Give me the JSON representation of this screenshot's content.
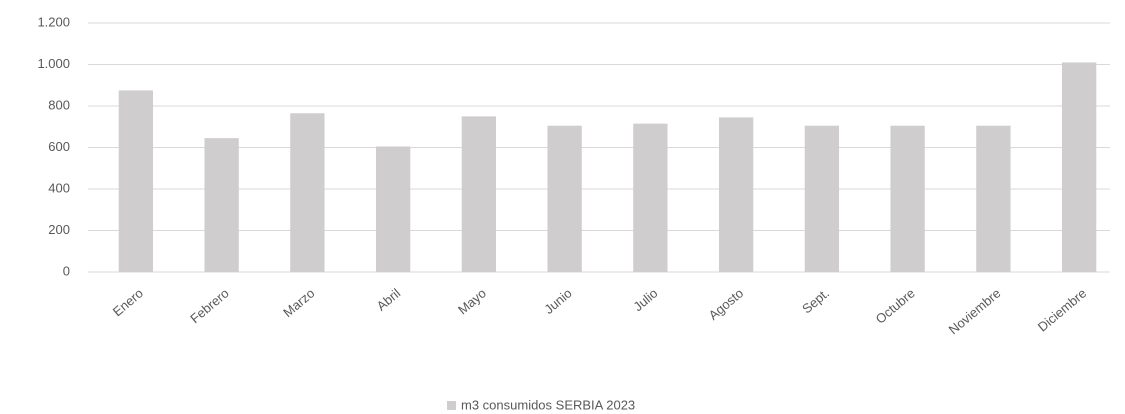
{
  "chart_data": {
    "type": "bar",
    "categories": [
      "Enero",
      "Febrero",
      "Marzo",
      "Abril",
      "Mayo",
      "Junio",
      "Julio",
      "Agosto",
      "Sept.",
      "Octubre",
      "Noviembre",
      "Diciembre"
    ],
    "series": [
      {
        "name": "m3 consumidos SERBIA 2023",
        "color": "#cfcdcd",
        "values": [
          875,
          645,
          765,
          605,
          750,
          705,
          715,
          745,
          705,
          705,
          705,
          1010
        ]
      }
    ],
    "ylim": [
      0,
      1200
    ],
    "yticks": [
      0,
      200,
      400,
      600,
      800,
      {
        "value": 1000,
        "label": "1.000"
      },
      {
        "value": 1200,
        "label": "1.200"
      }
    ],
    "grid": true,
    "legend": "bottom"
  }
}
